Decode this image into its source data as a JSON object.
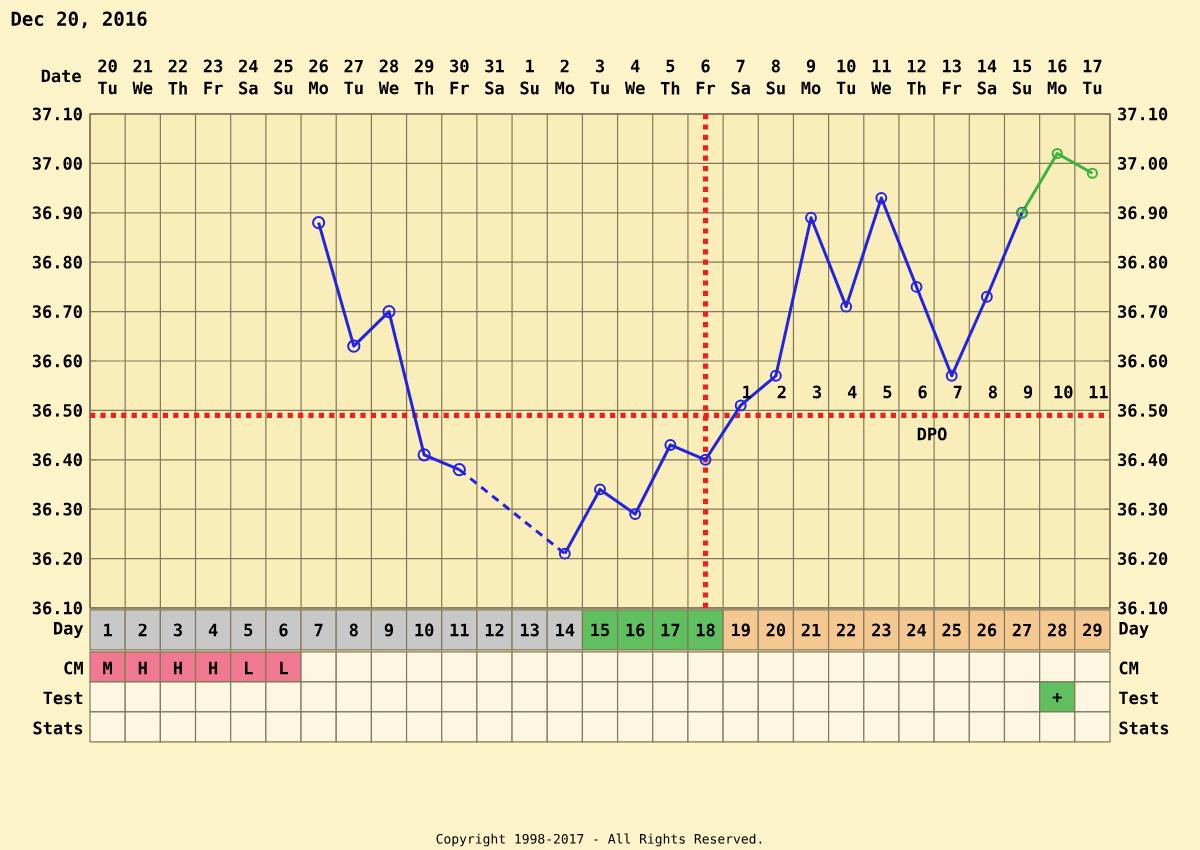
{
  "chart_data": {
    "type": "line",
    "title": "Dec 20, 2016",
    "categories": [
      "1",
      "2",
      "3",
      "4",
      "5",
      "6",
      "7",
      "8",
      "9",
      "10",
      "11",
      "12",
      "13",
      "14",
      "15",
      "16",
      "17",
      "18",
      "19",
      "20",
      "21",
      "22",
      "23",
      "24",
      "25",
      "26",
      "27",
      "28",
      "29"
    ],
    "series": [
      {
        "color": "#2323e0",
        "marker": "circle",
        "line_style": "solid",
        "values": [
          null,
          null,
          null,
          null,
          null,
          null,
          36.88,
          36.63,
          36.7,
          36.41,
          36.38,
          null,
          null,
          null,
          null,
          null,
          null,
          null,
          null,
          null,
          null,
          null,
          null,
          null,
          null,
          null,
          null,
          null,
          null
        ]
      },
      {
        "color": "#2323e0",
        "marker": "none",
        "line_style": "dashed",
        "values": [
          null,
          null,
          null,
          null,
          null,
          null,
          null,
          null,
          null,
          null,
          36.38,
          null,
          null,
          36.21,
          null,
          null,
          null,
          null,
          null,
          null,
          null,
          null,
          null,
          null,
          null,
          null,
          null,
          null,
          null
        ]
      },
      {
        "color": "#2323e0",
        "marker": "circle",
        "line_style": "solid",
        "values": [
          null,
          null,
          null,
          null,
          null,
          null,
          null,
          null,
          null,
          null,
          null,
          null,
          null,
          36.21,
          36.34,
          36.29,
          36.43,
          36.4,
          36.51,
          36.57,
          36.89,
          36.71,
          36.93,
          36.75,
          36.57,
          36.73,
          36.9,
          null,
          null
        ]
      },
      {
        "color": "#3cb43c",
        "marker": "circle",
        "line_style": "solid",
        "values": [
          null,
          null,
          null,
          null,
          null,
          null,
          null,
          null,
          null,
          null,
          null,
          null,
          null,
          null,
          null,
          null,
          null,
          null,
          null,
          null,
          null,
          null,
          null,
          null,
          null,
          null,
          36.9,
          37.02,
          36.98
        ]
      }
    ],
    "ylim": [
      36.1,
      37.1
    ],
    "yticks": [
      {
        "value": 36.1,
        "label": "36.10"
      },
      {
        "value": 36.2,
        "label": "36.20"
      },
      {
        "value": 36.3,
        "label": "36.30"
      },
      {
        "value": 36.4,
        "label": "36.40"
      },
      {
        "value": 36.5,
        "label": "36.50"
      },
      {
        "value": 36.6,
        "label": "36.60"
      },
      {
        "value": 36.7,
        "label": "36.70"
      },
      {
        "value": 36.8,
        "label": "36.80"
      },
      {
        "value": 36.9,
        "label": "36.90"
      },
      {
        "value": 37.0,
        "label": "37.00"
      },
      {
        "value": 37.1,
        "label": "37.10"
      }
    ],
    "y2lim": [
      36.1,
      37.1
    ],
    "y2ticks": [
      {
        "value": 36.1,
        "label": "36.10"
      },
      {
        "value": 36.2,
        "label": "36.20"
      },
      {
        "value": 36.3,
        "label": "36.30"
      },
      {
        "value": 36.4,
        "label": "36.40"
      },
      {
        "value": 36.5,
        "label": "36.50"
      },
      {
        "value": 36.6,
        "label": "36.60"
      },
      {
        "value": 36.7,
        "label": "36.70"
      },
      {
        "value": 36.8,
        "label": "36.80"
      },
      {
        "value": 36.9,
        "label": "36.90"
      },
      {
        "value": 37.0,
        "label": "37.00"
      },
      {
        "value": 37.1,
        "label": "37.10"
      }
    ],
    "grid": true,
    "ref_lines": [
      {
        "axis": "y",
        "value": 36.49,
        "color": "#e8231f",
        "line_style": "dotted"
      },
      {
        "axis": "x",
        "value": "18",
        "color": "#e8231f",
        "line_style": "dotted"
      }
    ],
    "annotations": [
      "Date",
      "20",
      "21",
      "22",
      "23",
      "24",
      "25",
      "26",
      "27",
      "28",
      "29",
      "30",
      "31",
      "1",
      "2",
      "3",
      "4",
      "5",
      "6",
      "7",
      "8",
      "9",
      "10",
      "11",
      "12",
      "13",
      "14",
      "15",
      "16",
      "17",
      "Tu",
      "We",
      "Th",
      "Fr",
      "Sa",
      "Su",
      "Mo",
      "Tu",
      "We",
      "Th",
      "Fr",
      "Sa",
      "Su",
      "Mo",
      "Tu",
      "We",
      "Th",
      "Fr",
      "Sa",
      "Su",
      "Mo",
      "Tu",
      "We",
      "Th",
      "Fr",
      "Sa",
      "Su",
      "Mo",
      "Tu",
      "Day",
      "Day",
      "CM",
      "CM",
      "Test",
      "Test",
      "Stats",
      "Stats",
      "M",
      "H",
      "H",
      "H",
      "L",
      "L",
      "+",
      "1",
      "2",
      "3",
      "4",
      "5",
      "6",
      "7",
      "8",
      "9",
      "10",
      "11",
      "DPO",
      "Copyright 1998-2017 - All Rights Reserved."
    ]
  }
}
